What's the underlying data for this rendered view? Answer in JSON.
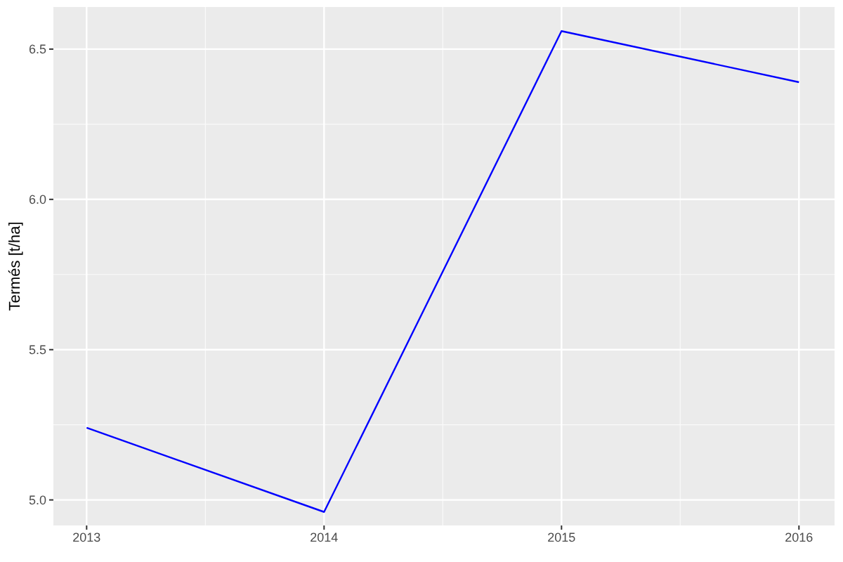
{
  "chart_data": {
    "type": "line",
    "ylabel": "Termés [t/ha]",
    "x": [
      2013,
      2014,
      2015,
      2016
    ],
    "series": [
      {
        "color": "#0000ff",
        "values": [
          5.24,
          4.96,
          6.56,
          6.39
        ]
      }
    ],
    "xlim": [
      2012.86,
      2016.15
    ],
    "xticks": [
      2013,
      2014,
      2015,
      2016
    ],
    "ylim": [
      4.915,
      6.64
    ],
    "yticks": [
      {
        "value": 5,
        "label": "5.0"
      },
      5.5,
      {
        "value": 6,
        "label": "6.0"
      },
      6.5
    ],
    "grid": true,
    "legend": false,
    "marker": "none",
    "line_style": "solid"
  }
}
